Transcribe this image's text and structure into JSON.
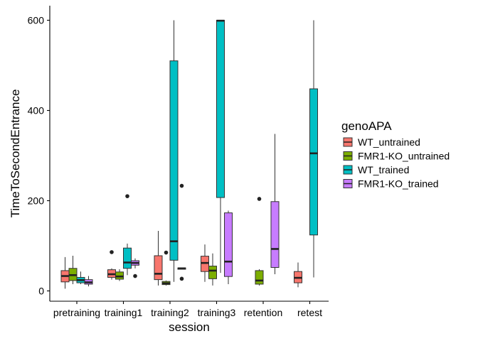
{
  "chart_data": {
    "type": "boxplot",
    "xlabel": "session",
    "ylabel": "TimeToSecondEntrance",
    "ylim": [
      -20,
      630
    ],
    "yticks": [
      0,
      200,
      400,
      600
    ],
    "categories": [
      "pretraining",
      "training1",
      "training2",
      "training3",
      "retention",
      "retest"
    ],
    "legend_title": "genoAPA",
    "legend_position": "right",
    "grid": false,
    "series": [
      {
        "name": "WT_untrained",
        "color": "#F8766D",
        "boxes": [
          {
            "category": "pretraining",
            "whisker_low": 5,
            "q1": 20,
            "median": 33,
            "q3": 45,
            "whisker_high": 75,
            "outliers": []
          },
          {
            "category": "training1",
            "whisker_low": 25,
            "q1": 30,
            "median": 37,
            "q3": 47,
            "whisker_high": 50,
            "outliers": [
              86
            ]
          },
          {
            "category": "training2",
            "whisker_low": 12,
            "q1": 25,
            "median": 38,
            "q3": 78,
            "whisker_high": 133,
            "outliers": []
          },
          {
            "category": "training3",
            "whisker_low": 20,
            "q1": 43,
            "median": 62,
            "q3": 77,
            "whisker_high": 103,
            "outliers": []
          },
          {
            "category": "retest",
            "whisker_low": 8,
            "q1": 18,
            "median": 29,
            "q3": 43,
            "whisker_high": 63,
            "outliers": []
          }
        ]
      },
      {
        "name": "FMR1-KO_untrained",
        "color": "#7CAE00",
        "boxes": [
          {
            "category": "pretraining",
            "whisker_low": 15,
            "q1": 23,
            "median": 35,
            "q3": 50,
            "whisker_high": 78,
            "outliers": []
          },
          {
            "category": "training1",
            "whisker_low": 22,
            "q1": 26,
            "median": 32,
            "q3": 42,
            "whisker_high": 48,
            "outliers": []
          },
          {
            "category": "training2",
            "whisker_low": 12,
            "q1": 14,
            "median": 17,
            "q3": 21,
            "whisker_high": 23,
            "outliers": [
              85
            ]
          },
          {
            "category": "training3",
            "whisker_low": 12,
            "q1": 27,
            "median": 45,
            "q3": 55,
            "whisker_high": 83,
            "outliers": []
          },
          {
            "category": "retention",
            "whisker_low": 12,
            "q1": 15,
            "median": 23,
            "q3": 45,
            "whisker_high": 48,
            "outliers": [
              204
            ]
          }
        ]
      },
      {
        "name": "WT_trained",
        "color": "#00BFC4",
        "boxes": [
          {
            "category": "pretraining",
            "whisker_low": 15,
            "q1": 18,
            "median": 24,
            "q3": 30,
            "whisker_high": 43,
            "outliers": []
          },
          {
            "category": "training1",
            "whisker_low": 35,
            "q1": 50,
            "median": 63,
            "q3": 95,
            "whisker_high": 105,
            "outliers": [
              210
            ]
          },
          {
            "category": "training2",
            "whisker_low": 20,
            "q1": 68,
            "median": 110,
            "q3": 510,
            "whisker_high": 600,
            "outliers": []
          },
          {
            "category": "training3",
            "whisker_low": 40,
            "q1": 207,
            "median": 599,
            "q3": 600,
            "whisker_high": 600,
            "outliers": []
          },
          {
            "category": "retest",
            "whisker_low": 30,
            "q1": 124,
            "median": 305,
            "q3": 448,
            "whisker_high": 600,
            "outliers": []
          }
        ]
      },
      {
        "name": "FMR1-KO_trained",
        "color": "#C77CFF",
        "boxes": [
          {
            "category": "pretraining",
            "whisker_low": 10,
            "q1": 15,
            "median": 19,
            "q3": 25,
            "whisker_high": 33,
            "outliers": []
          },
          {
            "category": "training1",
            "whisker_low": 50,
            "q1": 57,
            "median": 62,
            "q3": 67,
            "whisker_high": 72,
            "outliers": [
              33
            ]
          },
          {
            "category": "training2",
            "whisker_low": 48,
            "q1": 48,
            "median": 50,
            "q3": 51,
            "whisker_high": 52,
            "outliers": [
              233,
              27
            ]
          },
          {
            "category": "training3",
            "whisker_low": 15,
            "q1": 32,
            "median": 65,
            "q3": 173,
            "whisker_high": 178,
            "outliers": []
          },
          {
            "category": "retention",
            "whisker_low": 37,
            "q1": 52,
            "median": 93,
            "q3": 198,
            "whisker_high": 348,
            "outliers": []
          }
        ]
      }
    ]
  }
}
